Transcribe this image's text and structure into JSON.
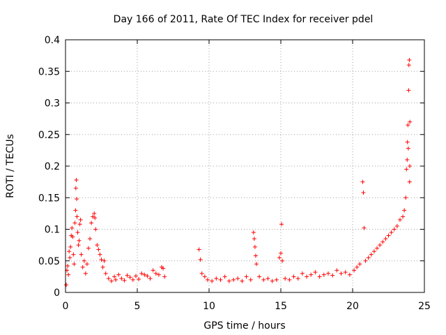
{
  "chart_data": {
    "type": "scatter",
    "title": "Day 166 of 2011, Rate Of TEC Index for receiver pdel",
    "xlabel": "GPS time / hours",
    "ylabel": "ROTI / TECUs",
    "xlim": [
      0,
      25
    ],
    "ylim": [
      0,
      0.4
    ],
    "xticks": [
      "0",
      "5",
      "10",
      "15",
      "20",
      "25"
    ],
    "yticks": [
      "0",
      "0.05",
      "0.1",
      "0.15",
      "0.2",
      "0.25",
      "0.3",
      "0.35",
      "0.4"
    ],
    "grid": true,
    "marker": "+",
    "color": "#ff0000",
    "series": [
      {
        "points": [
          [
            0.05,
            0.012
          ],
          [
            0.1,
            0.035
          ],
          [
            0.15,
            0.042
          ],
          [
            0.2,
            0.028
          ],
          [
            0.25,
            0.065
          ],
          [
            0.3,
            0.055
          ],
          [
            0.35,
            0.072
          ],
          [
            0.4,
            0.09
          ],
          [
            0.45,
            0.102
          ],
          [
            0.5,
            0.088
          ],
          [
            0.55,
            0.06
          ],
          [
            0.6,
            0.045
          ],
          [
            0.65,
            0.11
          ],
          [
            0.7,
            0.13
          ],
          [
            0.72,
            0.165
          ],
          [
            0.75,
            0.178
          ],
          [
            0.78,
            0.148
          ],
          [
            0.8,
            0.12
          ],
          [
            0.85,
            0.095
          ],
          [
            0.9,
            0.075
          ],
          [
            0.95,
            0.082
          ],
          [
            1.0,
            0.108
          ],
          [
            1.05,
            0.115
          ],
          [
            1.1,
            0.06
          ],
          [
            1.2,
            0.04
          ],
          [
            1.3,
            0.05
          ],
          [
            1.4,
            0.03
          ],
          [
            1.5,
            0.045
          ],
          [
            1.6,
            0.07
          ],
          [
            1.7,
            0.085
          ],
          [
            1.8,
            0.11
          ],
          [
            1.9,
            0.12
          ],
          [
            2.0,
            0.125
          ],
          [
            2.05,
            0.118
          ],
          [
            2.1,
            0.1
          ],
          [
            2.2,
            0.075
          ],
          [
            2.3,
            0.068
          ],
          [
            2.4,
            0.06
          ],
          [
            2.5,
            0.052
          ],
          [
            2.6,
            0.04
          ],
          [
            2.7,
            0.05
          ],
          [
            2.8,
            0.03
          ],
          [
            3.0,
            0.022
          ],
          [
            3.2,
            0.018
          ],
          [
            3.4,
            0.025
          ],
          [
            3.5,
            0.02
          ],
          [
            3.7,
            0.028
          ],
          [
            3.9,
            0.022
          ],
          [
            4.1,
            0.019
          ],
          [
            4.3,
            0.027
          ],
          [
            4.5,
            0.024
          ],
          [
            4.7,
            0.02
          ],
          [
            4.9,
            0.026
          ],
          [
            5.1,
            0.021
          ],
          [
            5.3,
            0.03
          ],
          [
            5.5,
            0.028
          ],
          [
            5.7,
            0.026
          ],
          [
            5.9,
            0.022
          ],
          [
            6.1,
            0.035
          ],
          [
            6.3,
            0.03
          ],
          [
            6.5,
            0.028
          ],
          [
            6.7,
            0.04
          ],
          [
            6.8,
            0.038
          ],
          [
            6.9,
            0.025
          ],
          [
            9.3,
            0.068
          ],
          [
            9.4,
            0.052
          ],
          [
            9.5,
            0.03
          ],
          [
            9.7,
            0.025
          ],
          [
            9.9,
            0.02
          ],
          [
            10.2,
            0.018
          ],
          [
            10.5,
            0.022
          ],
          [
            10.8,
            0.02
          ],
          [
            11.1,
            0.025
          ],
          [
            11.4,
            0.018
          ],
          [
            11.7,
            0.02
          ],
          [
            12.0,
            0.022
          ],
          [
            12.3,
            0.018
          ],
          [
            12.6,
            0.025
          ],
          [
            12.9,
            0.02
          ],
          [
            13.1,
            0.095
          ],
          [
            13.15,
            0.085
          ],
          [
            13.2,
            0.072
          ],
          [
            13.25,
            0.058
          ],
          [
            13.3,
            0.045
          ],
          [
            13.5,
            0.025
          ],
          [
            13.8,
            0.02
          ],
          [
            14.1,
            0.022
          ],
          [
            14.4,
            0.018
          ],
          [
            14.7,
            0.02
          ],
          [
            14.9,
            0.055
          ],
          [
            15.0,
            0.062
          ],
          [
            15.05,
            0.108
          ],
          [
            15.1,
            0.05
          ],
          [
            15.3,
            0.022
          ],
          [
            15.6,
            0.02
          ],
          [
            15.9,
            0.025
          ],
          [
            16.2,
            0.022
          ],
          [
            16.5,
            0.03
          ],
          [
            16.8,
            0.025
          ],
          [
            17.1,
            0.028
          ],
          [
            17.4,
            0.032
          ],
          [
            17.7,
            0.025
          ],
          [
            18.0,
            0.028
          ],
          [
            18.3,
            0.03
          ],
          [
            18.6,
            0.027
          ],
          [
            18.9,
            0.035
          ],
          [
            19.2,
            0.03
          ],
          [
            19.5,
            0.032
          ],
          [
            19.8,
            0.028
          ],
          [
            20.1,
            0.035
          ],
          [
            20.3,
            0.04
          ],
          [
            20.5,
            0.045
          ],
          [
            20.7,
            0.175
          ],
          [
            20.75,
            0.158
          ],
          [
            20.8,
            0.102
          ],
          [
            20.9,
            0.05
          ],
          [
            21.1,
            0.055
          ],
          [
            21.3,
            0.06
          ],
          [
            21.5,
            0.065
          ],
          [
            21.7,
            0.07
          ],
          [
            21.9,
            0.075
          ],
          [
            22.1,
            0.08
          ],
          [
            22.3,
            0.085
          ],
          [
            22.5,
            0.09
          ],
          [
            22.7,
            0.095
          ],
          [
            22.9,
            0.1
          ],
          [
            23.1,
            0.105
          ],
          [
            23.3,
            0.115
          ],
          [
            23.5,
            0.12
          ],
          [
            23.6,
            0.13
          ],
          [
            23.7,
            0.15
          ],
          [
            23.75,
            0.195
          ],
          [
            23.8,
            0.21
          ],
          [
            23.82,
            0.238
          ],
          [
            23.85,
            0.265
          ],
          [
            23.88,
            0.228
          ],
          [
            23.9,
            0.32
          ],
          [
            23.92,
            0.36
          ],
          [
            23.95,
            0.368
          ],
          [
            23.97,
            0.175
          ],
          [
            23.98,
            0.2
          ],
          [
            23.99,
            0.27
          ]
        ]
      }
    ]
  }
}
